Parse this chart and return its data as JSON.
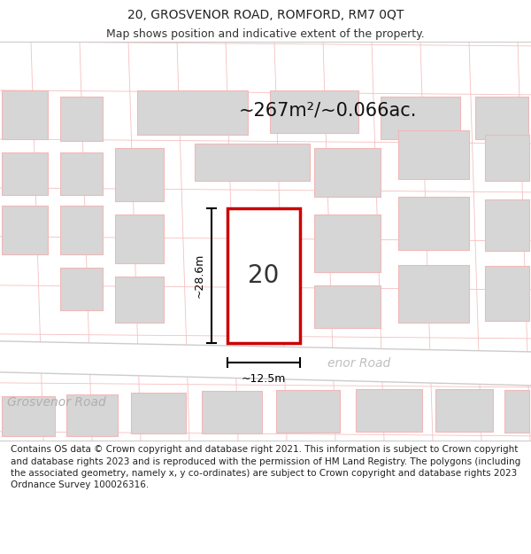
{
  "title_line1": "20, GROSVENOR ROAD, ROMFORD, RM7 0QT",
  "title_line2": "Map shows position and indicative extent of the property.",
  "area_label": "~267m²/~0.066ac.",
  "width_label": "~12.5m",
  "height_label": "~28.6m",
  "house_number": "20",
  "road_name_bottom": "Grosvenor Road",
  "road_name_overlay": "enor Road",
  "footer_text": "Contains OS data © Crown copyright and database right 2021. This information is subject to Crown copyright and database rights 2023 and is reproduced with the permission of HM Land Registry. The polygons (including the associated geometry, namely x, y co-ordinates) are subject to Crown copyright and database rights 2023 Ordnance Survey 100026316.",
  "bg_color": "#f2f2f2",
  "white": "#ffffff",
  "building_fill": "#d6d6d6",
  "light_red": "#f0b8b8",
  "highlight_edge": "#cc0000",
  "dim_color": "#111111",
  "road_text_color": "#aaaaaa",
  "footer_fontsize": 7.5,
  "title_fontsize": 10,
  "subtitle_fontsize": 9
}
